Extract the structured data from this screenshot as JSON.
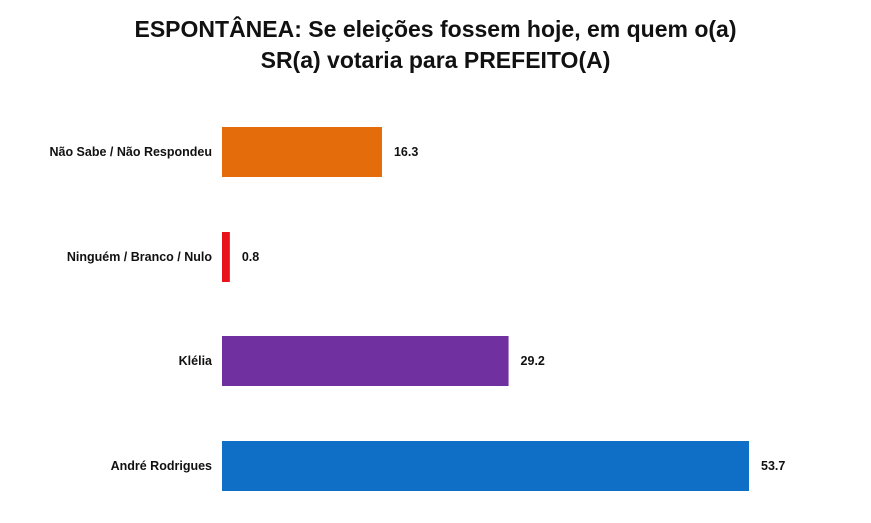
{
  "chart_data": {
    "type": "bar",
    "orientation": "horizontal",
    "title_line1": "ESPONTÂNEA: Se eleições fossem hoje, em quem o(a)",
    "title_line2": "SR(a) votaria para PREFEITO(A)",
    "categories": [
      "Não Sabe / Não Respondeu",
      "Ninguém / Branco / Nulo",
      "Klélia",
      "André Rodrigues"
    ],
    "values": [
      16.3,
      0.8,
      29.2,
      53.7
    ],
    "colors": [
      "#E46C0A",
      "#E8121B",
      "#7030A0",
      "#0F6FC6"
    ],
    "xlim": [
      0,
      53.7
    ],
    "grid": false,
    "legend": "none"
  }
}
